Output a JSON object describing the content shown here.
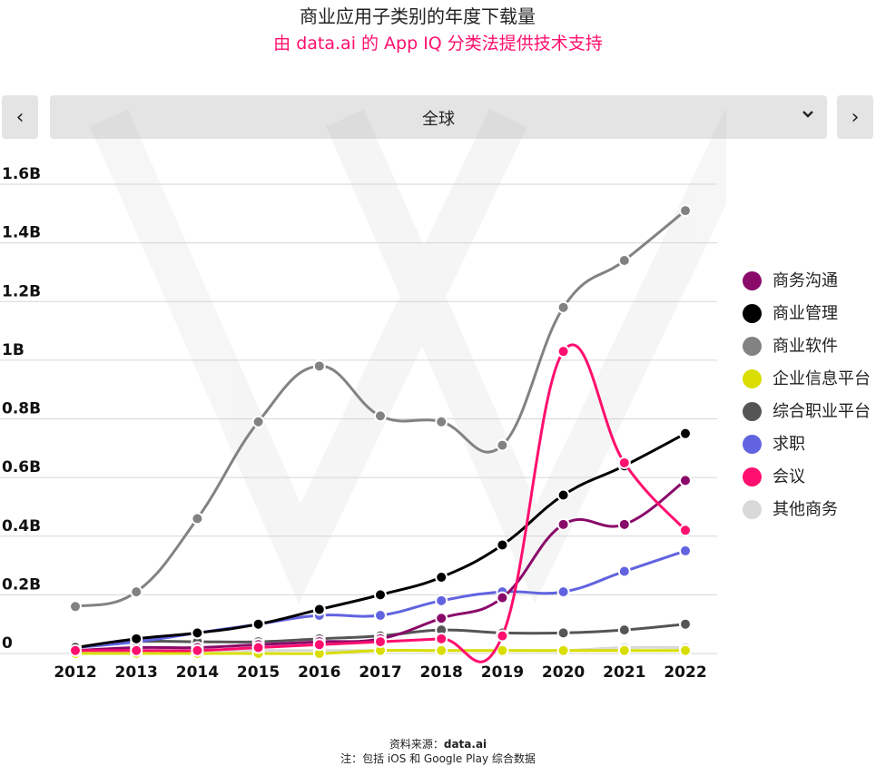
{
  "header": {
    "title": "商业应用子类别的年度下载量",
    "subtitle": "由 data.ai 的 App IQ 分类法提供技术支持"
  },
  "controls": {
    "prev_icon": "‹",
    "next_icon": "›",
    "region": "全球",
    "dropdown_icon": "chevron-down-icon"
  },
  "footer": {
    "source_prefix": "资料来源：",
    "source_name": "data.ai",
    "note": "注：包括 iOS 和 Google Play 综合数据"
  },
  "chart_data": {
    "type": "line",
    "title": "商业应用子类别的年度下载量",
    "x": [
      "2012",
      "2013",
      "2014",
      "2015",
      "2016",
      "2017",
      "2018",
      "2019",
      "2020",
      "2021",
      "2022"
    ],
    "ylim": [
      0,
      1.6
    ],
    "yticks": [
      0,
      0.2,
      0.4,
      0.6,
      0.8,
      1.0,
      1.2,
      1.4,
      1.6
    ],
    "ytick_labels": [
      "0",
      "0.2B",
      "0.4B",
      "0.6B",
      "0.8B",
      "1B",
      "1.2B",
      "1.4B",
      "1.6B"
    ],
    "grid": true,
    "legend_position": "right",
    "series": [
      {
        "name": "商务沟通",
        "color": "#8a0a6a",
        "values": [
          0.01,
          0.02,
          0.02,
          0.03,
          0.04,
          0.05,
          0.12,
          0.19,
          0.44,
          0.44,
          0.59
        ]
      },
      {
        "name": "商业管理",
        "color": "#000000",
        "values": [
          0.02,
          0.05,
          0.07,
          0.1,
          0.15,
          0.2,
          0.26,
          0.37,
          0.54,
          0.64,
          0.75
        ]
      },
      {
        "name": "商业软件",
        "color": "#828282",
        "values": [
          0.16,
          0.21,
          0.46,
          0.79,
          0.98,
          0.81,
          0.79,
          0.71,
          1.18,
          1.34,
          1.51
        ]
      },
      {
        "name": "企业信息平台",
        "color": "#d9de00",
        "values": [
          0.0,
          0.0,
          0.0,
          0.0,
          0.0,
          0.01,
          0.01,
          0.01,
          0.01,
          0.01,
          0.01
        ]
      },
      {
        "name": "综合职业平台",
        "color": "#555555",
        "values": [
          0.02,
          0.04,
          0.04,
          0.04,
          0.05,
          0.06,
          0.08,
          0.07,
          0.07,
          0.08,
          0.1
        ]
      },
      {
        "name": "求职",
        "color": "#6163e0",
        "values": [
          0.02,
          0.04,
          0.07,
          0.1,
          0.13,
          0.13,
          0.18,
          0.21,
          0.21,
          0.28,
          0.35
        ]
      },
      {
        "name": "会议",
        "color": "#ff0f6e",
        "values": [
          0.01,
          0.01,
          0.01,
          0.02,
          0.03,
          0.04,
          0.05,
          0.06,
          1.03,
          0.65,
          0.42
        ]
      },
      {
        "name": "其他商务",
        "color": "#d9d9d9",
        "values": [
          0.0,
          0.01,
          0.01,
          0.01,
          0.01,
          0.01,
          0.01,
          0.01,
          0.01,
          0.02,
          0.02
        ]
      }
    ]
  }
}
